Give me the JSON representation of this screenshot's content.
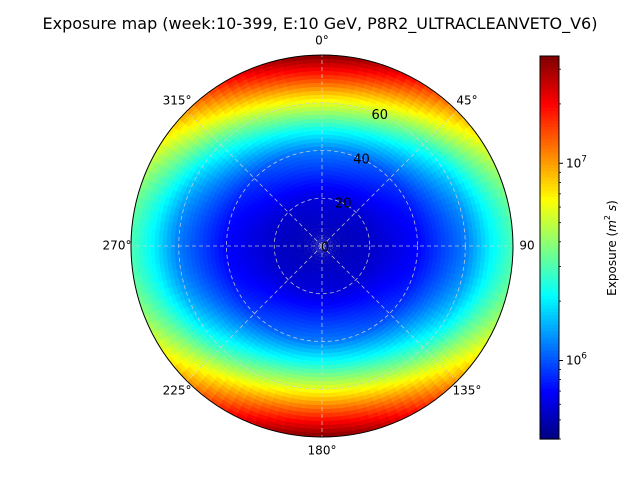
{
  "chart_data": {
    "type": "heatmap",
    "projection": "polar",
    "title": "Exposure map (week:10-399, E:10 GeV, P8R2_ULTRACLEANVETO_V6)",
    "colormap": "jet",
    "colorbar": {
      "label": "Exposure (m² s)",
      "scale": "log",
      "range": [
        400000,
        35000000
      ],
      "major_ticks": [
        {
          "value": 1000000,
          "base": "10",
          "exp": "6"
        },
        {
          "value": 10000000,
          "base": "10",
          "exp": "7"
        }
      ]
    },
    "theta_zero": "top",
    "theta_direction": "clockwise",
    "theta_ticks": [
      {
        "deg": 0,
        "label": "0°"
      },
      {
        "deg": 45,
        "label": "45°"
      },
      {
        "deg": 90,
        "label": "90"
      },
      {
        "deg": 135,
        "label": "135°"
      },
      {
        "deg": 180,
        "label": "180°"
      },
      {
        "deg": 225,
        "label": "225°"
      },
      {
        "deg": 270,
        "label": "270°"
      },
      {
        "deg": 315,
        "label": "315°"
      }
    ],
    "r_range": [
      0,
      80
    ],
    "r_ticks": [
      {
        "value": 0,
        "label": "0"
      },
      {
        "value": 20,
        "label": "20"
      },
      {
        "value": 40,
        "label": "40"
      },
      {
        "value": 60,
        "label": "60"
      }
    ],
    "grid": true,
    "exposure_profile": {
      "description_of_axes": "exposure vs radius at theta=0/180 (vertical) and theta=90/270 (horizontal)",
      "along_0_180": [
        {
          "r": 0,
          "exposure": 500000
        },
        {
          "r": 20,
          "exposure": 600000
        },
        {
          "r": 40,
          "exposure": 1200000
        },
        {
          "r": 50,
          "exposure": 2500000
        },
        {
          "r": 60,
          "exposure": 6000000
        },
        {
          "r": 70,
          "exposure": 15000000
        },
        {
          "r": 80,
          "exposure": 35000000
        }
      ],
      "along_90_270": [
        {
          "r": 0,
          "exposure": 500000
        },
        {
          "r": 20,
          "exposure": 550000
        },
        {
          "r": 40,
          "exposure": 700000
        },
        {
          "r": 60,
          "exposure": 1200000
        },
        {
          "r": 70,
          "exposure": 2000000
        },
        {
          "r": 80,
          "exposure": 3000000
        }
      ]
    }
  }
}
